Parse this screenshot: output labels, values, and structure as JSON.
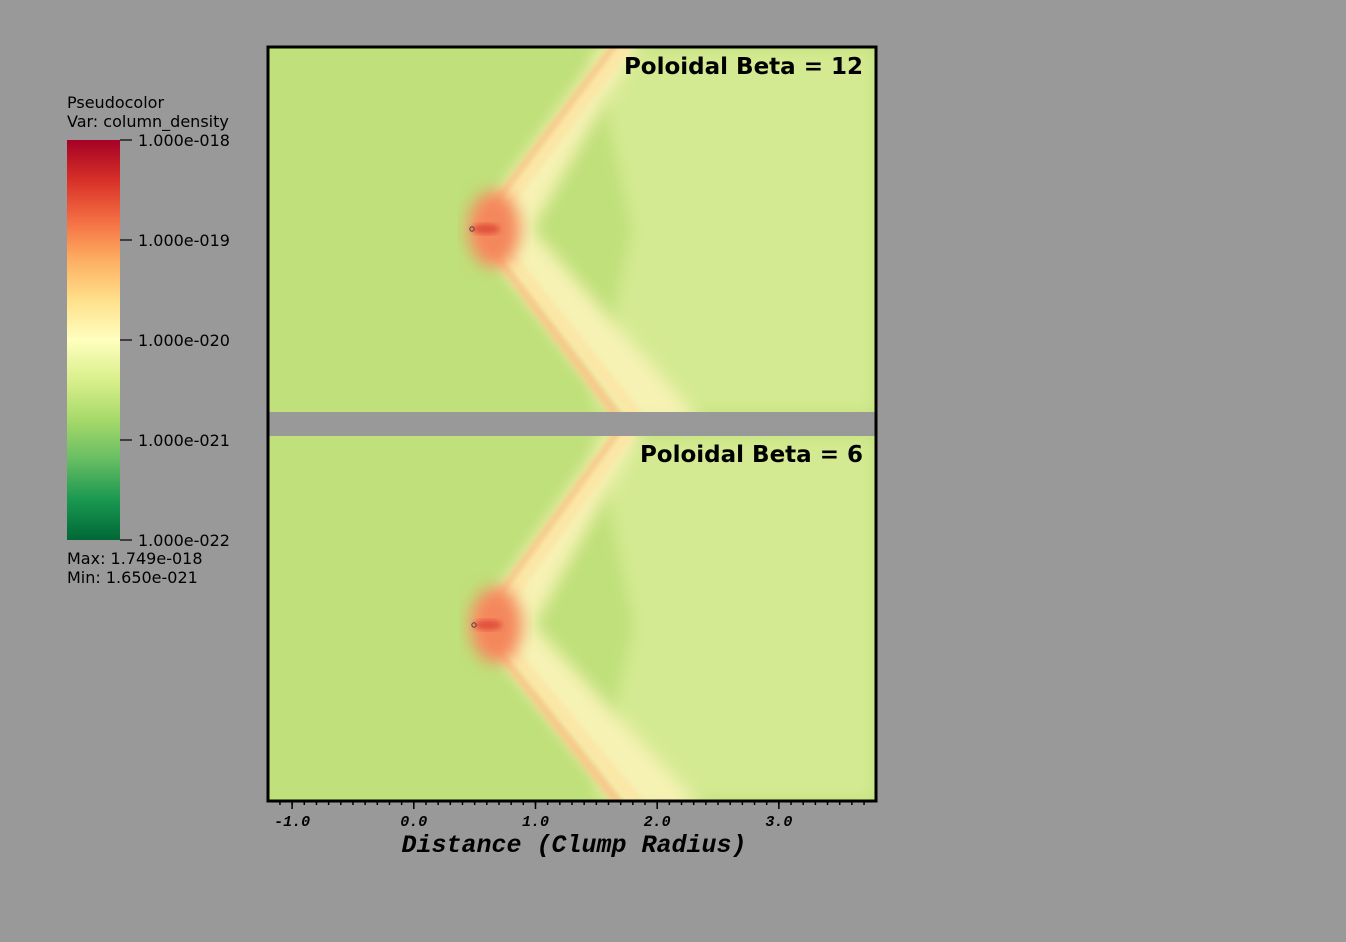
{
  "chart_data": {
    "type": "pseudocolor",
    "legend": {
      "title": "Pseudocolor",
      "var": "Var: column_density",
      "scale": "log",
      "ticks": [
        {
          "value": 1e-18,
          "label": "1.000e-018"
        },
        {
          "value": 1e-19,
          "label": "1.000e-019"
        },
        {
          "value": 1e-20,
          "label": "1.000e-020"
        },
        {
          "value": 1e-21,
          "label": "1.000e-021"
        },
        {
          "value": 1e-22,
          "label": "1.000e-022"
        }
      ],
      "range": [
        1e-22,
        1e-18
      ],
      "colors": [
        "#006837",
        "#1a9850",
        "#66bd63",
        "#a6d96a",
        "#d9ef8b",
        "#ffffbf",
        "#fee08b",
        "#fdae61",
        "#f46d43",
        "#d73027",
        "#a50026"
      ],
      "max_text": "Max:  1.749e-018",
      "min_text": "Min:  1.650e-021"
    },
    "panels": [
      {
        "title": "Poloidal Beta = 12"
      },
      {
        "title": "Poloidal Beta =  6"
      }
    ],
    "xlabel": "Distance (Clump Radius)",
    "xlim": [
      -1.19,
      3.79
    ],
    "xticks": [
      {
        "value": -1,
        "label": "-1.0"
      },
      {
        "value": 0,
        "label": "0.0"
      },
      {
        "value": 1,
        "label": "1.0"
      },
      {
        "value": 2,
        "label": "2.0"
      },
      {
        "value": 3,
        "label": "3.0"
      }
    ]
  }
}
